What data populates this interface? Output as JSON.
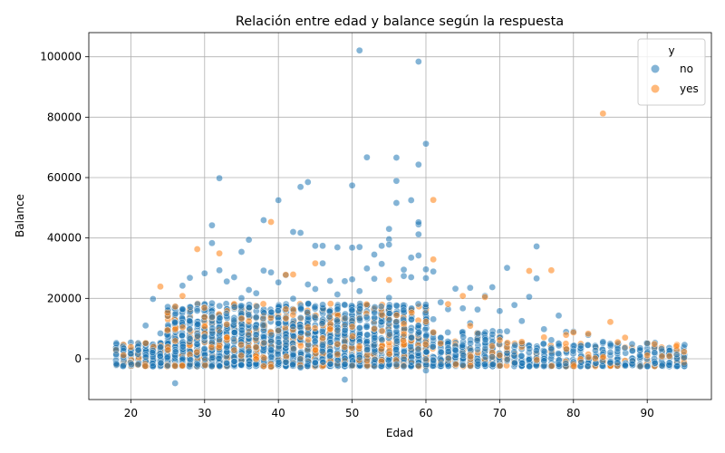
{
  "chart_data": {
    "type": "scatter",
    "title": "Relación entre edad y balance según la respuesta",
    "xlabel": "Edad",
    "ylabel": "Balance",
    "xlim": [
      14.3,
      98.7
    ],
    "ylim": [
      -13500,
      108000
    ],
    "xticks": [
      20,
      30,
      40,
      50,
      60,
      70,
      80,
      90
    ],
    "yticks": [
      0,
      20000,
      40000,
      60000,
      80000,
      100000
    ],
    "tick_labels_x": [
      "20",
      "30",
      "40",
      "50",
      "60",
      "70",
      "80",
      "90"
    ],
    "tick_labels_y": [
      "0",
      "20000",
      "40000",
      "60000",
      "80000",
      "100000"
    ],
    "grid": true,
    "legend": {
      "title": "y",
      "placement": "top-right"
    },
    "series": [
      {
        "name": "no",
        "color": "#1f77b4",
        "points": [
          [
            51,
            102100
          ],
          [
            59,
            98400
          ],
          [
            60,
            71200
          ],
          [
            52,
            66700
          ],
          [
            56,
            66600
          ],
          [
            59,
            64300
          ],
          [
            32,
            59800
          ],
          [
            56,
            58900
          ],
          [
            44,
            58500
          ],
          [
            43,
            56900
          ],
          [
            50,
            57400
          ],
          [
            40,
            52500
          ],
          [
            58,
            52500
          ],
          [
            56,
            51600
          ],
          [
            36,
            39400
          ],
          [
            31,
            44200
          ],
          [
            38,
            45900
          ],
          [
            42,
            42000
          ],
          [
            43,
            41700
          ],
          [
            55,
            43000
          ],
          [
            59,
            44500
          ],
          [
            59,
            45200
          ],
          [
            59,
            41200
          ],
          [
            55,
            39600
          ],
          [
            55,
            37800
          ],
          [
            45,
            37400
          ],
          [
            46,
            37400
          ],
          [
            48,
            36900
          ],
          [
            50,
            36800
          ],
          [
            51,
            37000
          ],
          [
            54,
            37400
          ],
          [
            75,
            37200
          ],
          [
            31,
            38300
          ],
          [
            35,
            35400
          ],
          [
            53,
            34500
          ],
          [
            58,
            33500
          ],
          [
            59,
            34200
          ],
          [
            60,
            29600
          ],
          [
            61,
            28900
          ],
          [
            57,
            29500
          ],
          [
            52,
            29900
          ],
          [
            64,
            23200
          ],
          [
            66,
            23500
          ],
          [
            69,
            23700
          ],
          [
            71,
            30100
          ],
          [
            74,
            20500
          ],
          [
            75,
            26600
          ],
          [
            78,
            14300
          ],
          [
            26,
            -8100
          ],
          [
            49,
            -6900
          ],
          [
            60,
            -3900
          ],
          [
            43,
            -2900
          ],
          [
            57,
            -2500
          ],
          [
            56,
            -1900
          ],
          [
            20,
            5400
          ],
          [
            22,
            11000
          ],
          [
            23,
            19800
          ],
          [
            25,
            17200
          ],
          [
            27,
            24200
          ],
          [
            28,
            26800
          ],
          [
            30,
            28300
          ],
          [
            32,
            29300
          ],
          [
            33,
            25600
          ],
          [
            34,
            27000
          ],
          [
            36,
            22800
          ],
          [
            38,
            29200
          ],
          [
            39,
            28600
          ],
          [
            40,
            25300
          ],
          [
            41,
            27700
          ],
          [
            44,
            24600
          ],
          [
            46,
            31600
          ],
          [
            47,
            25800
          ],
          [
            49,
            25700
          ],
          [
            50,
            26300
          ],
          [
            53,
            26500
          ],
          [
            54,
            31400
          ],
          [
            57,
            27400
          ],
          [
            58,
            27000
          ],
          [
            60,
            26700
          ],
          [
            62,
            18700
          ],
          [
            63,
            16400
          ],
          [
            65,
            16700
          ],
          [
            67,
            16300
          ],
          [
            68,
            20800
          ],
          [
            70,
            15800
          ],
          [
            72,
            17800
          ],
          [
            73,
            12500
          ],
          [
            76,
            9800
          ],
          [
            79,
            8900
          ],
          [
            80,
            9000
          ],
          [
            82,
            7900
          ],
          [
            84,
            5600
          ],
          [
            86,
            3300
          ],
          [
            88,
            2600
          ],
          [
            90,
            1900
          ],
          [
            92,
            1000
          ],
          [
            95,
            400
          ],
          [
            18,
            1500
          ],
          [
            19,
            600
          ],
          [
            21,
            2800
          ],
          [
            24,
            8400
          ],
          [
            26,
            12000
          ],
          [
            29,
            15900
          ],
          [
            31,
            18400
          ],
          [
            35,
            20100
          ],
          [
            37,
            21700
          ],
          [
            42,
            19900
          ],
          [
            45,
            23100
          ],
          [
            48,
            21300
          ],
          [
            51,
            22400
          ],
          [
            55,
            20200
          ],
          [
            61,
            13100
          ],
          [
            66,
            11800
          ],
          [
            71,
            9100
          ],
          [
            77,
            6200
          ],
          [
            81,
            4300
          ],
          [
            85,
            2100
          ],
          [
            89,
            1200
          ],
          [
            93,
            900
          ],
          [
            94,
            1400
          ]
        ]
      },
      {
        "name": "yes",
        "color": "#ff7f0e",
        "points": [
          [
            84,
            81200
          ],
          [
            61,
            52600
          ],
          [
            39,
            45300
          ],
          [
            61,
            32900
          ],
          [
            45,
            31600
          ],
          [
            29,
            36300
          ],
          [
            32,
            34900
          ],
          [
            41,
            27800
          ],
          [
            42,
            27900
          ],
          [
            55,
            26100
          ],
          [
            63,
            18100
          ],
          [
            65,
            20800
          ],
          [
            68,
            20400
          ],
          [
            74,
            29100
          ],
          [
            77,
            29300
          ],
          [
            24,
            23900
          ],
          [
            27,
            20800
          ],
          [
            39,
            -2700
          ],
          [
            85,
            12200
          ],
          [
            87,
            7000
          ],
          [
            86,
            5500
          ],
          [
            90,
            1100
          ],
          [
            92,
            800
          ],
          [
            93,
            900
          ],
          [
            95,
            2300
          ],
          [
            80,
            8700
          ],
          [
            82,
            8300
          ],
          [
            79,
            7900
          ],
          [
            76,
            7100
          ],
          [
            73,
            5600
          ],
          [
            70,
            6200
          ],
          [
            66,
            10900
          ],
          [
            60,
            12300
          ],
          [
            57,
            11600
          ],
          [
            53,
            9900
          ],
          [
            50,
            10600
          ],
          [
            47,
            9800
          ],
          [
            44,
            10400
          ],
          [
            36,
            12400
          ],
          [
            33,
            11400
          ],
          [
            30,
            10800
          ],
          [
            26,
            9700
          ],
          [
            22,
            5200
          ],
          [
            20,
            3900
          ],
          [
            19,
            1200
          ]
        ]
      }
    ]
  }
}
